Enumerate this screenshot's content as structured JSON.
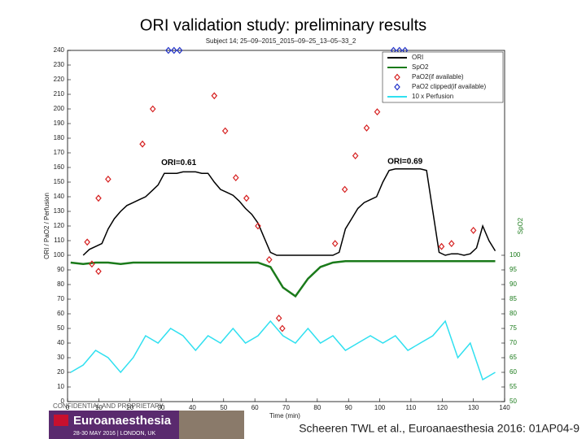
{
  "slide_title": "ORI validation study: preliminary results",
  "chart_data": {
    "type": "line",
    "title": "Subject 14; 25–09–2015_2015–09–25_13–05–33_2",
    "x_label": "Time (min)",
    "y_label": "ORI / PaO2 / Perfusion",
    "y2_label": "SpO2",
    "xlim": [
      0,
      140
    ],
    "xticks": [
      0,
      10,
      20,
      30,
      40,
      50,
      60,
      70,
      80,
      90,
      100,
      110,
      120,
      130,
      140
    ],
    "ylim": [
      0,
      240
    ],
    "yticks": [
      0,
      10,
      20,
      30,
      40,
      50,
      60,
      70,
      80,
      90,
      100,
      110,
      120,
      130,
      140,
      150,
      160,
      170,
      180,
      190,
      200,
      210,
      220,
      230,
      240
    ],
    "y2lim": [
      50,
      170
    ],
    "y2ticks": [
      50,
      55,
      60,
      65,
      70,
      75,
      80,
      85,
      90,
      95,
      100
    ],
    "legend": "upper right",
    "series": [
      {
        "name": "ORI",
        "type": "line",
        "color": "#000000",
        "x": [
          5,
          7,
          9,
          11,
          13,
          15,
          17,
          19,
          21,
          23,
          25,
          27,
          29,
          31,
          33,
          35,
          37,
          39,
          41,
          43,
          45,
          47,
          49,
          51,
          53,
          55,
          57,
          59,
          61,
          63,
          65,
          67,
          69,
          71,
          73,
          75,
          77,
          79,
          81,
          83,
          85,
          87,
          89,
          91,
          93,
          95,
          97,
          99,
          101,
          103,
          105,
          107,
          109,
          111,
          113,
          115,
          117,
          119,
          121,
          123,
          125,
          127,
          129,
          131,
          133,
          135,
          137
        ],
        "values": [
          100,
          104,
          106,
          108,
          118,
          125,
          130,
          134,
          136,
          138,
          140,
          144,
          148,
          156,
          156,
          156,
          157,
          157,
          157,
          156,
          156,
          150,
          145,
          143,
          141,
          137,
          132,
          128,
          122,
          112,
          102,
          100,
          100,
          100,
          100,
          100,
          100,
          100,
          100,
          100,
          100,
          102,
          118,
          125,
          132,
          136,
          138,
          140,
          150,
          158,
          159,
          159,
          159,
          159,
          159,
          158,
          130,
          102,
          100,
          101,
          101,
          100,
          101,
          105,
          120,
          110,
          103
        ]
      },
      {
        "name": "SpO2",
        "type": "line",
        "axis": "y2",
        "color": "#1a7a1a",
        "x": [
          1,
          5,
          9,
          13,
          17,
          21,
          25,
          29,
          33,
          37,
          41,
          45,
          49,
          53,
          57,
          61,
          65,
          69,
          73,
          77,
          81,
          85,
          89,
          93,
          97,
          101,
          105,
          109,
          113,
          117,
          121,
          125,
          129,
          133,
          137
        ],
        "values": [
          97.5,
          97,
          97.5,
          97.5,
          97,
          97.5,
          97.5,
          97.5,
          97.5,
          97.5,
          97.5,
          97.5,
          97.5,
          97.5,
          97.5,
          97.5,
          96,
          89,
          86,
          92,
          96,
          97.5,
          98,
          98,
          98,
          98,
          98,
          98,
          98,
          98,
          98,
          98,
          98,
          98,
          98
        ]
      },
      {
        "name": "PaO2(if available)",
        "type": "scatter",
        "color": "#d62020",
        "x": [
          6.3,
          7.8,
          9.9,
          9.9,
          13,
          24,
          27.3,
          47,
          50.5,
          53.9,
          57.3,
          61,
          64.6,
          67.7,
          68.8,
          85.7,
          88.8,
          92.2,
          95.8,
          99.2,
          119.8,
          123,
          130
        ],
        "values": [
          109,
          94,
          89,
          139,
          152,
          176,
          200,
          209,
          185,
          153,
          139,
          120,
          97,
          57,
          50,
          108,
          145,
          168,
          187,
          198,
          106,
          108,
          117
        ]
      },
      {
        "name": "PaO2 clipped(if available)",
        "type": "scatter",
        "color": "#2030c8",
        "x": [
          32.3,
          34.1,
          35.9,
          104.4,
          106.3,
          108.1
        ],
        "values": [
          240,
          240,
          240,
          240,
          240,
          240
        ]
      },
      {
        "name": "10 x Perfusion",
        "type": "line",
        "color": "#30e0f0",
        "x": [
          1,
          5,
          9,
          13,
          17,
          21,
          25,
          29,
          33,
          37,
          41,
          45,
          49,
          53,
          57,
          61,
          65,
          69,
          73,
          77,
          81,
          85,
          89,
          93,
          97,
          101,
          105,
          109,
          113,
          117,
          121,
          125,
          129,
          133,
          137
        ],
        "values": [
          20,
          25,
          35,
          30,
          20,
          30,
          45,
          40,
          50,
          45,
          35,
          45,
          40,
          50,
          40,
          45,
          55,
          45,
          40,
          50,
          40,
          45,
          35,
          40,
          45,
          40,
          45,
          35,
          40,
          45,
          55,
          30,
          40,
          15,
          20
        ]
      }
    ],
    "annotations": [
      {
        "text": "ORI=0.61",
        "x": 30,
        "y": 163
      },
      {
        "text": "ORI=0.69",
        "x": 102.5,
        "y": 164
      }
    ]
  },
  "footer": {
    "confidential": "CONFIDENTIAL AND PROPRIETARY",
    "event": "Euroanaesthesia",
    "event_date": "28-30 MAY 2016 | LONDON, UK",
    "citation": "Scheeren TWL et al., Euroanaesthesia 2016: 01AP04-9"
  }
}
